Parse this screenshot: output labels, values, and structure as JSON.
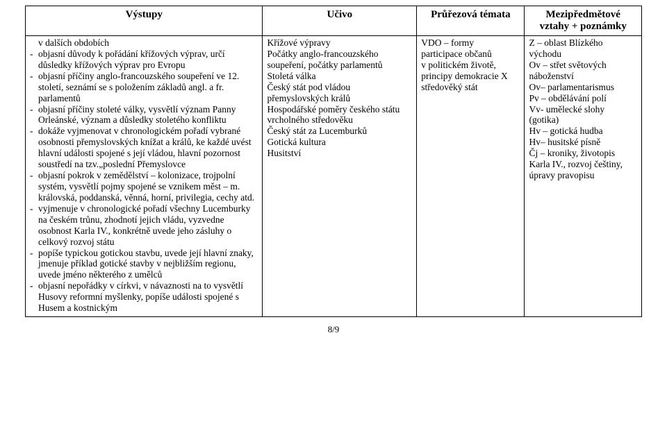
{
  "header": {
    "col1": "Výstupy",
    "col2": "Učivo",
    "col3": "Průřezová témata",
    "col4_line1": "Mezipředmětové",
    "col4_line2": "vztahy + poznámky"
  },
  "vystupy_intro": "v dalších obdobích",
  "vystupy": [
    "objasní důvody k pořádání křížových výprav, určí důsledky křížových výprav pro Evropu",
    "objasní příčiny anglo-francouzského soupeření ve 12. století, seznámí se s položením základů angl. a fr. parlamentů",
    "objasní příčiny stoleté války, vysvětlí význam Panny Orleánské, význam a důsledky stoletého konfliktu",
    "dokáže vyjmenovat v chronologickém pořadí vybrané osobnosti přemyslovských knížat a králů, ke každé uvést hlavní události spojené s její vládou,  hlavní pozornost soustředí na tzv.„poslední Přemyslovce",
    "  objasní pokrok v zemědělství – kolonizace, trojpolní systém,  vysvětlí pojmy spojené se vznikem měst – m. královská, poddanská, věnná, horní, privilegia, cechy atd.",
    "vyjmenuje v chronologické pořadí všechny Lucemburky na českém trůnu, zhodnotí  jejich vládu, vyzvedne osobnost Karla IV., konkrétně uvede jeho zásluhy o celkový rozvoj státu",
    "popíše typickou gotickou stavbu, uvede její hlavní znaky, jmenuje příklad gotické stavby v nejbližším regionu, uvede jméno některého z umělců",
    "objasní nepořádky v církvi, v návaznosti na to vysvětlí Husovy reformní myšlenky, popíše události spojené s Husem a kostnickým"
  ],
  "ucivo": {
    "l1": "Křížové výpravy",
    "sp1": " ",
    "l2a": "Počátky anglo-francouzského",
    "l2b": "soupeření, počátky parlamentů",
    "sp2": " ",
    "l3": "Stoletá válka",
    "sp3a": " ",
    "sp3b": " ",
    "l4a": "Český stát pod vládou",
    "l4b": "přemyslovských králů",
    "sp4a": " ",
    "sp4b": " ",
    "sp4c": " ",
    "l5a": "Hospodářské poměry českého státu",
    "l5b": "vrcholného středověku",
    "sp5a": " ",
    "sp5b": " ",
    "l6": "Český stát za Lucemburků",
    "sp6a": " ",
    "sp6b": " ",
    "sp6c": " ",
    "l7": "Gotická kultura",
    "sp7a": " ",
    "sp7b": " ",
    "sp7c": " ",
    "l8": "Husitství"
  },
  "prurez": {
    "sp0": " ",
    "l1": "VDO – formy",
    "l2": "participace občanů",
    "l3": "v politickém životě,",
    "l4": "principy demokracie X",
    "l5": "středověký stát"
  },
  "mezip": {
    "l1": "Z – oblast Blízkého",
    "l2": "východu",
    "l3": "Ov – střet světových",
    "l4": "náboženství",
    "sp1": " ",
    "l5": "Ov– parlamentarismus",
    "sp2a": " ",
    "sp2b": " ",
    "sp2c": " ",
    "sp2d": " ",
    "sp2e": " ",
    "sp2f": " ",
    "sp2g": " ",
    "l6": "Pv – obdělávání polí",
    "sp3a": " ",
    "sp3b": " ",
    "sp3c": " ",
    "sp3d": " ",
    "sp3e": " ",
    "sp3f": " ",
    "sp3g": " ",
    "l7": "Vv- umělecké slohy",
    "l8": "(gotika)",
    "l9": "Hv – gotická hudba",
    "sp4": " ",
    "l10": "Hv– husitské písně",
    "l11": "Čj – kroniky, životopis",
    "l12": "Karla IV., rozvoj češtiny,",
    "l13": "úpravy pravopisu"
  },
  "footer": "8/9"
}
